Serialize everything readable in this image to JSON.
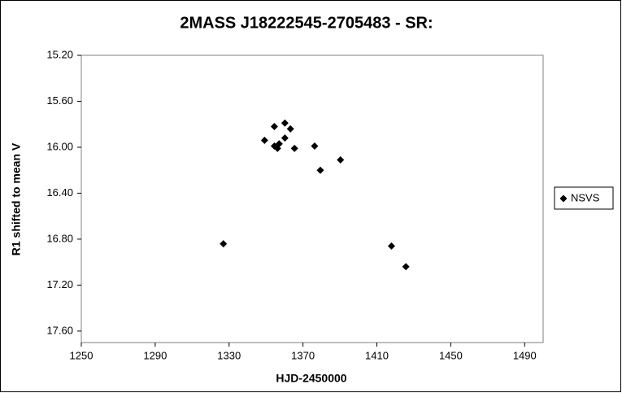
{
  "chart_data": {
    "type": "scatter",
    "title": "2MASS J18222545-2705483  - SR:",
    "x_label": "HJD-2450000",
    "y_label": "R1 shifted to mean V",
    "xlim": [
      1250,
      1500
    ],
    "xticks": [
      1250,
      1290,
      1330,
      1370,
      1410,
      1450,
      1490
    ],
    "ylim": [
      15.2,
      17.7
    ],
    "y_inverted": true,
    "yticks": [
      {
        "value": 15.2,
        "label": "15.20"
      },
      {
        "value": 15.6,
        "label": "15.60"
      },
      {
        "value": 16.0,
        "label": "16.00"
      },
      {
        "value": 16.4,
        "label": "16.40"
      },
      {
        "value": 16.8,
        "label": "16.80"
      },
      {
        "value": 17.2,
        "label": "17.20"
      },
      {
        "value": 17.6,
        "label": "17.60"
      }
    ],
    "legend_position": "right",
    "series": [
      {
        "name": "NSVS",
        "color": "#000000",
        "x": [
          1326.9,
          1349.2,
          1354.5,
          1354.5,
          1356.2,
          1357.1,
          1360.2,
          1360.2,
          1363.2,
          1365.4,
          1376.3,
          1379.4,
          1390.3,
          1417.9,
          1425.7
        ],
        "values": [
          16.84,
          15.94,
          15.82,
          15.99,
          16.01,
          15.97,
          15.79,
          15.92,
          15.84,
          16.01,
          15.99,
          16.2,
          16.11,
          16.86,
          17.04
        ]
      }
    ]
  }
}
